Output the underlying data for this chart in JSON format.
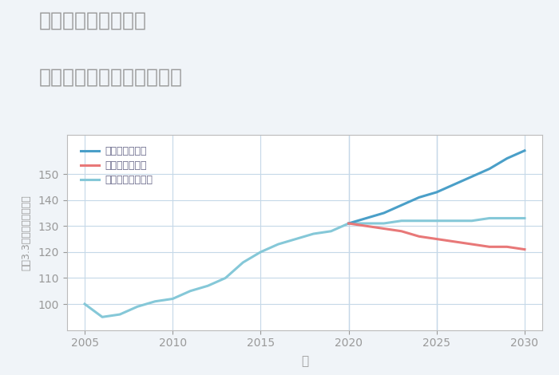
{
  "title_line1": "兵庫県播磨高岡駅の",
  "title_line2": "中古マンションの価格推移",
  "xlabel": "年",
  "ylabel": "坪（3.3㎡）単価（万円）",
  "xlim": [
    2004,
    2031
  ],
  "ylim": [
    90,
    165
  ],
  "yticks": [
    100,
    110,
    120,
    130,
    140,
    150
  ],
  "xticks": [
    2005,
    2010,
    2015,
    2020,
    2025,
    2030
  ],
  "vlines": [
    2020,
    2025
  ],
  "bg_color": "#f0f4f8",
  "plot_bg_color": "#ffffff",
  "grid_color": "#c5d8e8",
  "legend_labels": [
    "グッドシナリオ",
    "バッドシナリオ",
    "ノーマルシナリオ"
  ],
  "normal_color": "#85c8d8",
  "good_color": "#4a9fc8",
  "bad_color": "#e87878",
  "normal_x": [
    2005,
    2006,
    2007,
    2008,
    2009,
    2010,
    2011,
    2012,
    2013,
    2014,
    2015,
    2016,
    2017,
    2018,
    2019,
    2020,
    2021,
    2022,
    2023,
    2024,
    2025,
    2026,
    2027,
    2028,
    2029,
    2030
  ],
  "normal_y": [
    100,
    95,
    96,
    99,
    101,
    102,
    105,
    107,
    110,
    116,
    120,
    123,
    125,
    127,
    128,
    131,
    131,
    131,
    132,
    132,
    132,
    132,
    132,
    133,
    133,
    133
  ],
  "good_x": [
    2020,
    2021,
    2022,
    2023,
    2024,
    2025,
    2026,
    2027,
    2028,
    2029,
    2030
  ],
  "good_y": [
    131,
    133,
    135,
    138,
    141,
    143,
    146,
    149,
    152,
    156,
    159
  ],
  "bad_x": [
    2020,
    2021,
    2022,
    2023,
    2024,
    2025,
    2026,
    2027,
    2028,
    2029,
    2030
  ],
  "bad_y": [
    131,
    130,
    129,
    128,
    126,
    125,
    124,
    123,
    122,
    122,
    121
  ],
  "title_color": "#999999",
  "axis_color": "#bbbbbb",
  "tick_color": "#999999",
  "legend_text_color": "#666688"
}
